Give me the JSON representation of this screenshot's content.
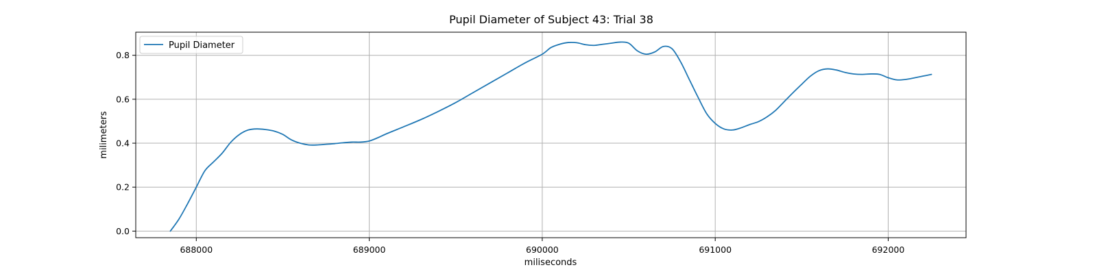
{
  "chart_data": {
    "type": "line",
    "title": "Pupil Diameter of Subject 43: Trial 38",
    "xlabel": "miliseconds",
    "ylabel": "milimeters",
    "xlim": [
      687650,
      692450
    ],
    "ylim": [
      -0.03,
      0.905
    ],
    "grid": true,
    "legend": {
      "placement": "top-left",
      "entries": [
        "Pupil Diameter"
      ]
    },
    "xticks": [
      688000,
      689000,
      690000,
      691000,
      692000
    ],
    "xtick_labels": [
      "688000",
      "689000",
      "690000",
      "691000",
      "692000"
    ],
    "yticks": [
      0.0,
      0.2,
      0.4,
      0.6,
      0.8
    ],
    "ytick_labels": [
      "0.0",
      "0.2",
      "0.4",
      "0.6",
      "0.8"
    ],
    "colors": {
      "series": "#1f77b4",
      "grid": "#b0b0b0",
      "axes": "#000000"
    },
    "series": [
      {
        "name": "Pupil Diameter",
        "x": [
          687850,
          687900,
          687950,
          688000,
          688050,
          688100,
          688150,
          688200,
          688250,
          688300,
          688350,
          688400,
          688450,
          688500,
          688550,
          688600,
          688650,
          688700,
          688750,
          688800,
          688850,
          688900,
          688950,
          689000,
          689050,
          689100,
          689200,
          689300,
          689400,
          689500,
          689600,
          689700,
          689800,
          689900,
          690000,
          690050,
          690100,
          690150,
          690200,
          690250,
          690300,
          690350,
          690400,
          690450,
          690500,
          690550,
          690600,
          690650,
          690700,
          690750,
          690800,
          690850,
          690900,
          690950,
          691000,
          691050,
          691100,
          691150,
          691200,
          691250,
          691300,
          691350,
          691400,
          691450,
          691500,
          691550,
          691600,
          691650,
          691700,
          691750,
          691800,
          691850,
          691900,
          691950,
          692000,
          692050,
          692100,
          692150,
          692200,
          692250
        ],
        "values": [
          0.0,
          0.055,
          0.125,
          0.2,
          0.275,
          0.315,
          0.355,
          0.405,
          0.44,
          0.46,
          0.465,
          0.462,
          0.455,
          0.44,
          0.415,
          0.4,
          0.392,
          0.392,
          0.395,
          0.398,
          0.402,
          0.405,
          0.405,
          0.41,
          0.425,
          0.443,
          0.475,
          0.508,
          0.545,
          0.585,
          0.63,
          0.675,
          0.72,
          0.765,
          0.805,
          0.835,
          0.85,
          0.858,
          0.857,
          0.848,
          0.845,
          0.85,
          0.855,
          0.86,
          0.855,
          0.82,
          0.805,
          0.815,
          0.84,
          0.83,
          0.77,
          0.69,
          0.61,
          0.535,
          0.49,
          0.465,
          0.46,
          0.47,
          0.485,
          0.498,
          0.52,
          0.55,
          0.59,
          0.63,
          0.668,
          0.705,
          0.73,
          0.738,
          0.733,
          0.722,
          0.715,
          0.713,
          0.715,
          0.713,
          0.698,
          0.688,
          0.69,
          0.697,
          0.705,
          0.713
        ]
      }
    ]
  }
}
